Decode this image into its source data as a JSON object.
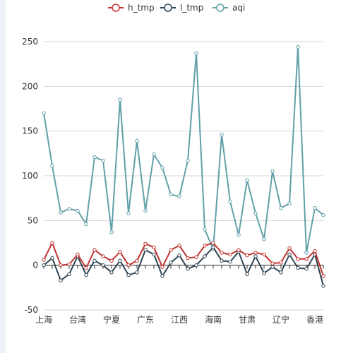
{
  "chart_data": {
    "type": "line",
    "title": "",
    "xlabel": "",
    "ylabel": "",
    "ylim": [
      -50,
      250
    ],
    "yticks": [
      -50,
      0,
      50,
      100,
      150,
      200,
      250
    ],
    "grid": true,
    "legend_position": "top-center",
    "x_visible_labels": [
      "上海",
      "台湾",
      "宁夏",
      "广东",
      "江西",
      "海南",
      "甘肃",
      "辽宁",
      "香港"
    ],
    "x_label_every": 4,
    "point_count": 34,
    "series": [
      {
        "name": "h_tmp",
        "color": "#c23531",
        "values": [
          6,
          25,
          0,
          1,
          12,
          -3,
          17,
          10,
          5,
          15,
          0,
          5,
          24,
          20,
          -2,
          17,
          22,
          8,
          9,
          22,
          25,
          14,
          12,
          17,
          11,
          14,
          12,
          2,
          3,
          19,
          7,
          7,
          16,
          -12
        ]
      },
      {
        "name": "l_tmp",
        "color": "#2f4554",
        "values": [
          0,
          8,
          -17,
          -10,
          10,
          -11,
          5,
          0,
          -8,
          5,
          -11,
          -8,
          17,
          12,
          -12,
          3,
          11,
          -4,
          0,
          10,
          20,
          5,
          4,
          15,
          -10,
          10,
          -9,
          -2,
          -8,
          12,
          -3,
          -4,
          12,
          -23
        ]
      },
      {
        "name": "aqi",
        "color": "#61a0a8",
        "values": [
          170,
          111,
          59,
          63,
          61,
          46,
          121,
          117,
          37,
          185,
          58,
          139,
          61,
          124,
          109,
          79,
          77,
          117,
          237,
          40,
          18,
          146,
          71,
          34,
          95,
          58,
          29,
          105,
          64,
          69,
          244,
          14,
          64,
          56
        ]
      }
    ]
  }
}
